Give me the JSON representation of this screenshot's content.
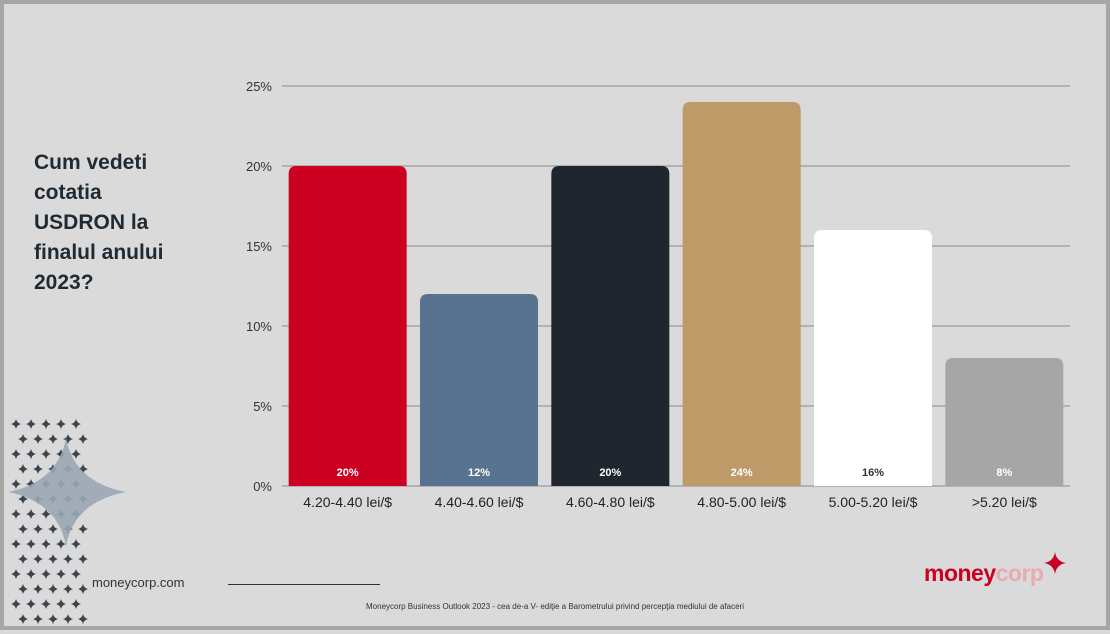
{
  "question": "Cum vedeti\ncotatia\nUSDRON la\nfinalul anului\n2023?",
  "site_url": "moneycorp.com",
  "footnote": "Moneycorp Business Outlook 2023 - cea de-a V- ediţie a Barometrului privind percepţia mediului de afaceri",
  "logo": {
    "money": "money",
    "corp": "corp"
  },
  "colors": {
    "background": "#dadada",
    "gridline": "#9a9a9a",
    "brand_red": "#cc0020"
  },
  "chart_data": {
    "type": "bar",
    "title": "",
    "xlabel": "",
    "ylabel": "",
    "categories": [
      "4.20-4.40 lei/$",
      "4.40-4.60 lei/$",
      "4.60-4.80 lei/$",
      "4.80-5.00 lei/$",
      "5.00-5.20 lei/$",
      ">5.20 lei/$"
    ],
    "values": [
      20,
      12,
      20,
      24,
      16,
      8
    ],
    "data_labels": [
      "20%",
      "12%",
      "20%",
      "24%",
      "16%",
      "8%"
    ],
    "bar_colors": [
      "#cc0020",
      "#58738f",
      "#1f262d",
      "#bd9a68",
      "#ffffff",
      "#a6a6a6"
    ],
    "label_colors": [
      "#ffffff",
      "#ffffff",
      "#ffffff",
      "#ffffff",
      "#333333",
      "#ffffff"
    ],
    "ylim": [
      0,
      25
    ],
    "yticks": [
      0,
      5,
      10,
      15,
      20,
      25
    ],
    "ytick_labels": [
      "0%",
      "5%",
      "10%",
      "15%",
      "20%",
      "25%"
    ],
    "grid": true,
    "legend": "none"
  }
}
